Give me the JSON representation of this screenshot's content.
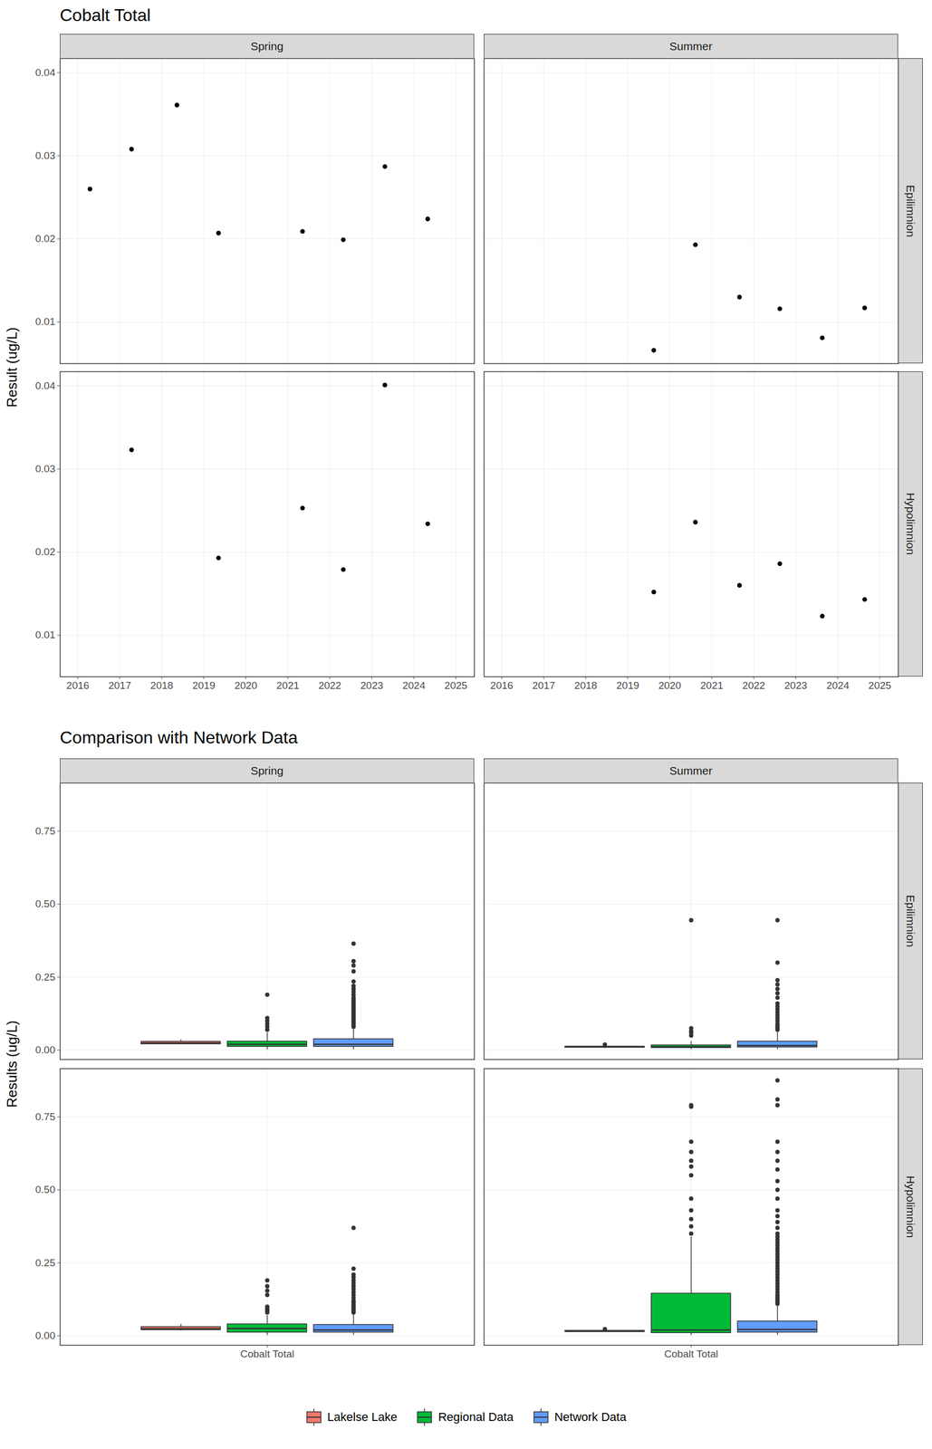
{
  "chart_data": [
    {
      "type": "scatter",
      "title": "Cobalt Total",
      "y_label": "Result (ug/L)",
      "facet_columns": [
        "Spring",
        "Summer"
      ],
      "facet_rows": [
        "Epilimnion",
        "Hypolimnion"
      ],
      "xlim": [
        2015.58,
        2025.44
      ],
      "xticks": [
        2016,
        2017,
        2018,
        2019,
        2020,
        2021,
        2022,
        2023,
        2024,
        2025
      ],
      "ylim": [
        0.005,
        0.0417
      ],
      "yticks": [
        0.01,
        0.02,
        0.03,
        0.04
      ],
      "grid": true,
      "color": "#000000",
      "panels": [
        {
          "column": "Spring",
          "row": "Epilimnion",
          "x": [
            2016.29,
            2017.28,
            2018.36,
            2019.35,
            2021.35,
            2022.32,
            2023.31,
            2024.33
          ],
          "values": [
            0.026,
            0.0308,
            0.0361,
            0.0207,
            0.0209,
            0.0199,
            0.0287,
            0.0224
          ]
        },
        {
          "column": "Summer",
          "row": "Epilimnion",
          "x": [
            2019.62,
            2020.61,
            2021.66,
            2022.62,
            2023.63,
            2024.64
          ],
          "values": [
            0.0066,
            0.0193,
            0.013,
            0.0116,
            0.0081,
            0.0117
          ]
        },
        {
          "column": "Spring",
          "row": "Hypolimnion",
          "x": [
            2017.28,
            2019.35,
            2021.35,
            2022.32,
            2023.31,
            2024.33
          ],
          "values": [
            0.0323,
            0.0193,
            0.0253,
            0.0179,
            0.0401,
            0.0234
          ]
        },
        {
          "column": "Summer",
          "row": "Hypolimnion",
          "x": [
            2019.62,
            2020.61,
            2021.66,
            2022.62,
            2023.63,
            2024.64
          ],
          "values": [
            0.0152,
            0.0236,
            0.016,
            0.0186,
            0.0123,
            0.0143
          ]
        }
      ]
    },
    {
      "type": "box",
      "title": "Comparison with Network Data",
      "y_label": "Results (ug/L)",
      "categories": [
        "Cobalt Total"
      ],
      "facet_columns": [
        "Spring",
        "Summer"
      ],
      "facet_rows": [
        "Epilimnion",
        "Hypolimnion"
      ],
      "ylim": [
        -0.032,
        0.915
      ],
      "yticks": [
        {
          "value": 0,
          "label": "0.00"
        },
        0.25,
        {
          "value": 0.5,
          "label": "0.50"
        },
        0.75
      ],
      "grid": true,
      "legend": "bottom",
      "series": [
        {
          "name": "Lakelse Lake",
          "color": "#F8766D"
        },
        {
          "name": "Regional Data",
          "color": "#00BA38"
        },
        {
          "name": "Network Data",
          "color": "#619CFF"
        }
      ],
      "panels": [
        {
          "column": "Spring",
          "row": "Epilimnion",
          "boxes": [
            {
              "name": "Lakelse Lake",
              "low": 0.0199,
              "q1": 0.0208,
              "median": 0.0242,
              "q3": 0.0292,
              "high": 0.0361,
              "outliers": []
            },
            {
              "name": "Regional Data",
              "low": 0.002,
              "q1": 0.012,
              "median": 0.02,
              "q3": 0.03,
              "high": 0.06,
              "outliers": [
                0.07,
                0.08,
                0.09,
                0.1,
                0.11,
                0.19
              ]
            },
            {
              "name": "Network Data",
              "low": 0.002,
              "q1": 0.012,
              "median": 0.02,
              "q3": 0.038,
              "high": 0.075,
              "outliers": [
                0.08,
                0.085,
                0.09,
                0.095,
                0.1,
                0.105,
                0.11,
                0.115,
                0.12,
                0.125,
                0.13,
                0.135,
                0.14,
                0.145,
                0.15,
                0.155,
                0.16,
                0.165,
                0.17,
                0.175,
                0.18,
                0.19,
                0.2,
                0.21,
                0.22,
                0.235,
                0.27,
                0.29,
                0.305,
                0.365
              ]
            }
          ]
        },
        {
          "column": "Summer",
          "row": "Epilimnion",
          "boxes": [
            {
              "name": "Lakelse Lake",
              "low": 0.0066,
              "q1": 0.0089,
              "median": 0.0117,
              "q3": 0.0127,
              "high": 0.013,
              "outliers": [
                0.0193
              ]
            },
            {
              "name": "Regional Data",
              "low": 0.002,
              "q1": 0.008,
              "median": 0.012,
              "q3": 0.017,
              "high": 0.03,
              "outliers": [
                0.05,
                0.06,
                0.065,
                0.075,
                0.445
              ]
            },
            {
              "name": "Network Data",
              "low": 0.002,
              "q1": 0.01,
              "median": 0.016,
              "q3": 0.03,
              "high": 0.065,
              "outliers": [
                0.07,
                0.075,
                0.08,
                0.085,
                0.09,
                0.1,
                0.11,
                0.12,
                0.13,
                0.14,
                0.15,
                0.16,
                0.18,
                0.195,
                0.21,
                0.225,
                0.24,
                0.3,
                0.445
              ]
            }
          ]
        },
        {
          "column": "Spring",
          "row": "Hypolimnion",
          "boxes": [
            {
              "name": "Lakelse Lake",
              "low": 0.0179,
              "q1": 0.0203,
              "median": 0.0244,
              "q3": 0.0306,
              "high": 0.0401,
              "outliers": []
            },
            {
              "name": "Regional Data",
              "low": 0.002,
              "q1": 0.012,
              "median": 0.025,
              "q3": 0.04,
              "high": 0.07,
              "outliers": [
                0.08,
                0.085,
                0.09,
                0.095,
                0.1,
                0.14,
                0.155,
                0.17,
                0.19
              ]
            },
            {
              "name": "Network Data",
              "low": 0.002,
              "q1": 0.012,
              "median": 0.02,
              "q3": 0.038,
              "high": 0.075,
              "outliers": [
                0.08,
                0.085,
                0.09,
                0.095,
                0.1,
                0.105,
                0.11,
                0.115,
                0.12,
                0.13,
                0.14,
                0.15,
                0.16,
                0.17,
                0.18,
                0.19,
                0.2,
                0.21,
                0.23,
                0.37
              ]
            }
          ]
        },
        {
          "column": "Summer",
          "row": "Hypolimnion",
          "boxes": [
            {
              "name": "Lakelse Lake",
              "low": 0.0123,
              "q1": 0.0145,
              "median": 0.0156,
              "q3": 0.018,
              "high": 0.0186,
              "outliers": [
                0.0236
              ]
            },
            {
              "name": "Regional Data",
              "low": 0.002,
              "q1": 0.01,
              "median": 0.02,
              "q3": 0.145,
              "high": 0.339,
              "outliers": [
                0.35,
                0.375,
                0.4,
                0.43,
                0.47,
                0.55,
                0.58,
                0.6,
                0.63,
                0.665,
                0.785,
                0.79
              ]
            },
            {
              "name": "Network Data",
              "low": 0.002,
              "q1": 0.012,
              "median": 0.022,
              "q3": 0.05,
              "high": 0.105,
              "outliers": [
                0.11,
                0.115,
                0.12,
                0.125,
                0.13,
                0.135,
                0.14,
                0.15,
                0.16,
                0.17,
                0.18,
                0.19,
                0.2,
                0.21,
                0.22,
                0.23,
                0.24,
                0.25,
                0.26,
                0.27,
                0.28,
                0.29,
                0.3,
                0.31,
                0.32,
                0.33,
                0.34,
                0.35,
                0.37,
                0.39,
                0.41,
                0.43,
                0.47,
                0.5,
                0.53,
                0.57,
                0.6,
                0.63,
                0.665,
                0.79,
                0.81,
                0.875
              ]
            }
          ]
        }
      ]
    }
  ]
}
